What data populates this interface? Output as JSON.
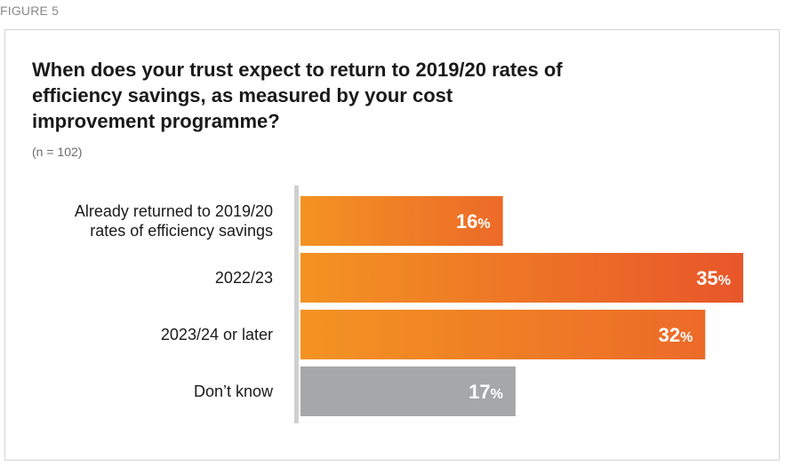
{
  "figure_label": "FIGURE 5",
  "chart_data": {
    "type": "bar",
    "orientation": "horizontal",
    "title": "When does your trust expect to return to 2019/20 rates of efficiency savings, as measured by your cost improvement programme?",
    "subtitle": "(n = 102)",
    "categories": [
      [
        "Already returned to 2019/20",
        "rates of efficiency savings"
      ],
      [
        "2022/23"
      ],
      [
        "2023/24 or later"
      ],
      [
        "Don’t know"
      ]
    ],
    "values": [
      16,
      35,
      32,
      17
    ],
    "value_suffix": "%",
    "xlim": [
      0,
      35
    ],
    "grid": false,
    "colors": {
      "orange_light": "#f39322",
      "orange_dark": "#e8562a",
      "grey": "#a6a7a9",
      "axis": "#d0d0d0"
    },
    "bar_styles": [
      "orange",
      "orange",
      "orange",
      "grey"
    ]
  }
}
